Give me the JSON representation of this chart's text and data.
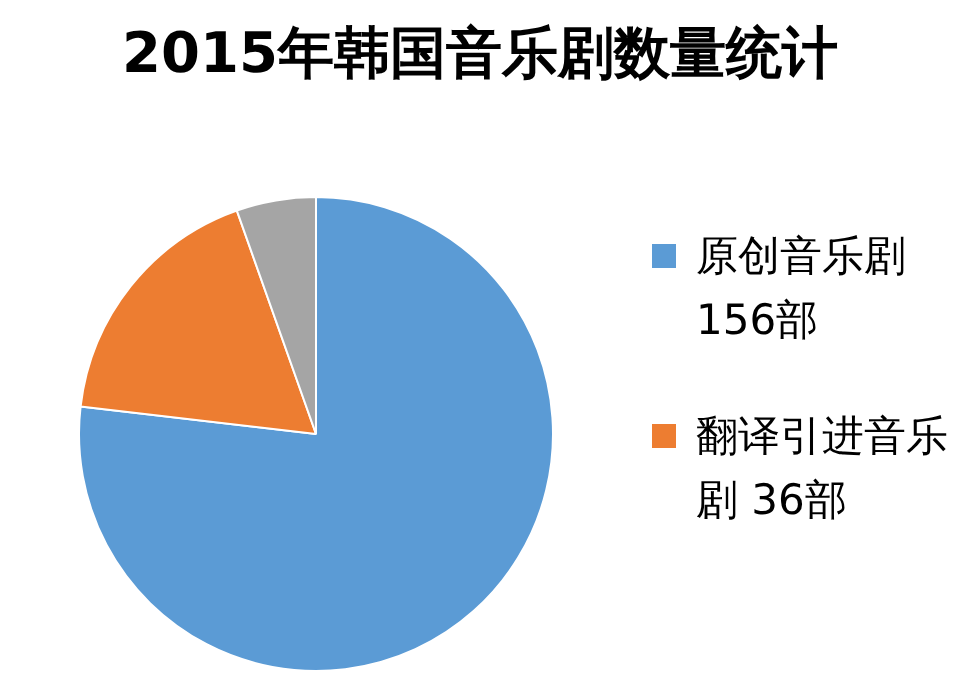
{
  "chart_data": {
    "type": "pie",
    "title": "2015年韩国音乐剧数量统计",
    "categories": [
      "原创音乐剧 156部",
      "翻译引进音乐剧 36部",
      null
    ],
    "values": [
      156,
      36,
      11
    ],
    "colors": [
      "#5b9bd5",
      "#ed7d31",
      "#a5a5a5"
    ],
    "legend": "right"
  }
}
